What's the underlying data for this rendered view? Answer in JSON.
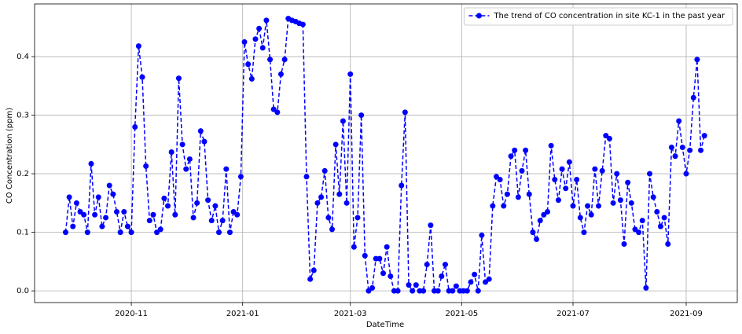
{
  "chart_data": {
    "type": "line",
    "xlabel": "DateTime",
    "ylabel": "CO Concentration (ppm)",
    "x": [
      "2020-09-26",
      "2020-09-28",
      "2020-09-30",
      "2020-10-02",
      "2020-10-04",
      "2020-10-06",
      "2020-10-08",
      "2020-10-10",
      "2020-10-12",
      "2020-10-14",
      "2020-10-16",
      "2020-10-18",
      "2020-10-20",
      "2020-10-22",
      "2020-10-24",
      "2020-10-26",
      "2020-10-28",
      "2020-10-30",
      "2020-11-01",
      "2020-11-03",
      "2020-11-05",
      "2020-11-07",
      "2020-11-09",
      "2020-11-11",
      "2020-11-13",
      "2020-11-15",
      "2020-11-17",
      "2020-11-19",
      "2020-11-21",
      "2020-11-23",
      "2020-11-25",
      "2020-11-27",
      "2020-11-29",
      "2020-12-01",
      "2020-12-03",
      "2020-12-05",
      "2020-12-07",
      "2020-12-09",
      "2020-12-11",
      "2020-12-13",
      "2020-12-15",
      "2020-12-17",
      "2020-12-19",
      "2020-12-21",
      "2020-12-23",
      "2020-12-25",
      "2020-12-27",
      "2020-12-29",
      "2020-12-31",
      "2021-01-02",
      "2021-01-04",
      "2021-01-06",
      "2021-01-08",
      "2021-01-10",
      "2021-01-12",
      "2021-01-14",
      "2021-01-16",
      "2021-01-18",
      "2021-01-20",
      "2021-01-22",
      "2021-01-24",
      "2021-01-26",
      "2021-01-28",
      "2021-01-30",
      "2021-02-01",
      "2021-02-03",
      "2021-02-05",
      "2021-02-07",
      "2021-02-09",
      "2021-02-11",
      "2021-02-13",
      "2021-02-15",
      "2021-02-17",
      "2021-02-19",
      "2021-02-21",
      "2021-02-23",
      "2021-02-25",
      "2021-02-27",
      "2021-03-01",
      "2021-03-03",
      "2021-03-05",
      "2021-03-07",
      "2021-03-09",
      "2021-03-11",
      "2021-03-13",
      "2021-03-15",
      "2021-03-17",
      "2021-03-19",
      "2021-03-21",
      "2021-03-23",
      "2021-03-25",
      "2021-03-27",
      "2021-03-29",
      "2021-03-31",
      "2021-04-02",
      "2021-04-04",
      "2021-04-06",
      "2021-04-08",
      "2021-04-10",
      "2021-04-12",
      "2021-04-14",
      "2021-04-16",
      "2021-04-18",
      "2021-04-20",
      "2021-04-22",
      "2021-04-24",
      "2021-04-26",
      "2021-04-28",
      "2021-04-30",
      "2021-05-02",
      "2021-05-04",
      "2021-05-06",
      "2021-05-08",
      "2021-05-10",
      "2021-05-12",
      "2021-05-14",
      "2021-05-16",
      "2021-05-18",
      "2021-05-20",
      "2021-05-22",
      "2021-05-24",
      "2021-05-26",
      "2021-05-28",
      "2021-05-30",
      "2021-06-01",
      "2021-06-03",
      "2021-06-05",
      "2021-06-07",
      "2021-06-09",
      "2021-06-11",
      "2021-06-13",
      "2021-06-15",
      "2021-06-17",
      "2021-06-19",
      "2021-06-21",
      "2021-06-23",
      "2021-06-25",
      "2021-06-27",
      "2021-06-29",
      "2021-07-01",
      "2021-07-03",
      "2021-07-05",
      "2021-07-07",
      "2021-07-09",
      "2021-07-11",
      "2021-07-13",
      "2021-07-15",
      "2021-07-17",
      "2021-07-19",
      "2021-07-21",
      "2021-07-23",
      "2021-07-25",
      "2021-07-27",
      "2021-07-29",
      "2021-07-31",
      "2021-08-02",
      "2021-08-04",
      "2021-08-06",
      "2021-08-08",
      "2021-08-10",
      "2021-08-12",
      "2021-08-14",
      "2021-08-16",
      "2021-08-18",
      "2021-08-20",
      "2021-08-22",
      "2021-08-24",
      "2021-08-26",
      "2021-08-28",
      "2021-08-30",
      "2021-09-01",
      "2021-09-03",
      "2021-09-05",
      "2021-09-07",
      "2021-09-09",
      "2021-09-11"
    ],
    "series": [
      {
        "name": "The trend of CO concentration in site KC-1 in the past year",
        "color": "#0000ff",
        "values": [
          0.1,
          0.16,
          0.11,
          0.15,
          0.135,
          0.13,
          0.1,
          0.217,
          0.13,
          0.16,
          0.11,
          0.125,
          0.18,
          0.165,
          0.135,
          0.1,
          0.135,
          0.11,
          0.1,
          0.28,
          0.418,
          0.365,
          0.213,
          0.12,
          0.13,
          0.1,
          0.105,
          0.158,
          0.145,
          0.237,
          0.13,
          0.363,
          0.25,
          0.208,
          0.225,
          0.125,
          0.15,
          0.273,
          0.255,
          0.155,
          0.12,
          0.145,
          0.1,
          0.12,
          0.208,
          0.1,
          0.135,
          0.13,
          0.195,
          0.425,
          0.387,
          0.362,
          0.43,
          0.448,
          0.415,
          0.462,
          0.395,
          0.31,
          0.305,
          0.37,
          0.395,
          0.465,
          0.462,
          0.46,
          0.457,
          0.455,
          0.195,
          0.02,
          0.035,
          0.15,
          0.16,
          0.205,
          0.125,
          0.105,
          0.25,
          0.165,
          0.29,
          0.15,
          0.37,
          0.075,
          0.125,
          0.3,
          0.06,
          0,
          0.005,
          0.055,
          0.055,
          0.03,
          0.075,
          0.025,
          0,
          0,
          0.18,
          0.305,
          0.01,
          0,
          0.01,
          0,
          0,
          0.045,
          0.112,
          0,
          0,
          0.025,
          0.045,
          0,
          0,
          0.008,
          0,
          0,
          0,
          0.015,
          0.028,
          0,
          0.095,
          0.015,
          0.02,
          0.145,
          0.195,
          0.19,
          0.145,
          0.165,
          0.23,
          0.24,
          0.16,
          0.205,
          0.24,
          0.165,
          0.1,
          0.088,
          0.12,
          0.13,
          0.135,
          0.248,
          0.19,
          0.155,
          0.208,
          0.175,
          0.22,
          0.145,
          0.19,
          0.125,
          0.1,
          0.145,
          0.13,
          0.208,
          0.145,
          0.205,
          0.265,
          0.26,
          0.15,
          0.2,
          0.155,
          0.08,
          0.185,
          0.15,
          0.105,
          0.1,
          0.12,
          0.005,
          0.2,
          0.16,
          0.135,
          0.11,
          0.125,
          0.08,
          0.245,
          0.23,
          0.29,
          0.245,
          0.2,
          0.24,
          0.33,
          0.395,
          0.24,
          0.265
        ]
      }
    ],
    "xlim": [
      "2020-09-09",
      "2021-09-29"
    ],
    "xticks": [
      {
        "value": "2020-11-01",
        "label": "2020-11"
      },
      {
        "value": "2021-01-01",
        "label": "2021-01"
      },
      {
        "value": "2021-03-01",
        "label": "2021-03"
      },
      {
        "value": "2021-05-01",
        "label": "2021-05"
      },
      {
        "value": "2021-07-01",
        "label": "2021-07"
      },
      {
        "value": "2021-09-01",
        "label": "2021-09"
      }
    ],
    "ylim": [
      -0.02,
      0.49
    ],
    "yticks": [
      {
        "value": 0,
        "label": "0.0"
      },
      0.1,
      0.2,
      0.3,
      0.4
    ],
    "grid": true,
    "legend": "upper right",
    "dashed": true,
    "markers": true
  }
}
